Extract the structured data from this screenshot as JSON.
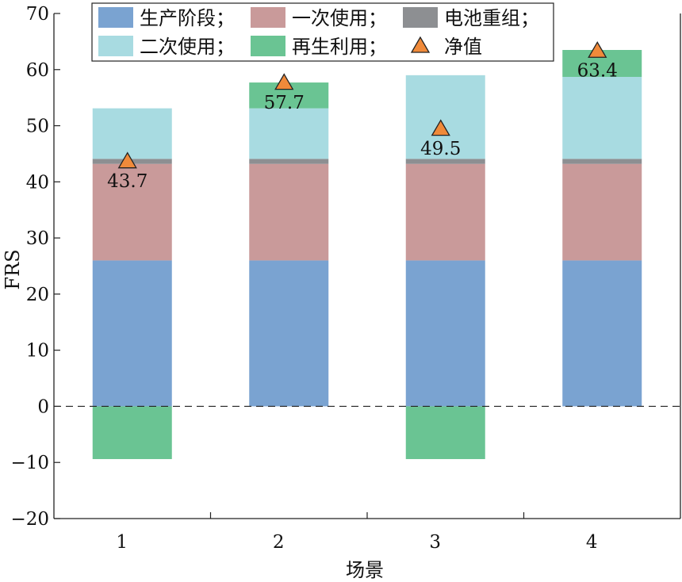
{
  "chart_data": {
    "type": "bar",
    "stacked": true,
    "xlabel": "场景",
    "ylabel": "FRS",
    "ylim": [
      -20,
      70
    ],
    "yticks": [
      -20,
      -10,
      0,
      10,
      20,
      30,
      40,
      50,
      60,
      70
    ],
    "ytick_labels": [
      "−20",
      "−10",
      "0",
      "10",
      "20",
      "30",
      "40",
      "50",
      "60",
      "70"
    ],
    "categories": [
      "1",
      "2",
      "3",
      "4"
    ],
    "zero_line": "dashed",
    "grid": false,
    "legend_position": "top-left",
    "series": [
      {
        "name": "生产阶段；",
        "color": "#7aa3d1",
        "values": [
          26.0,
          26.0,
          26.0,
          26.0
        ]
      },
      {
        "name": "一次使用；",
        "color": "#c99a9a",
        "values": [
          17.2,
          17.2,
          17.2,
          17.2
        ]
      },
      {
        "name": "电池重组；",
        "color": "#8d8f92",
        "values": [
          0.9,
          0.9,
          0.9,
          0.9
        ]
      },
      {
        "name": "二次使用；",
        "color": "#a8dbe1",
        "values": [
          9.0,
          9.0,
          14.9,
          14.6
        ]
      },
      {
        "name": "再生利用；",
        "color": "#6ac493",
        "values": [
          -9.4,
          4.6,
          -9.4,
          4.8
        ]
      }
    ],
    "net": {
      "name": "净值",
      "marker": "triangle",
      "color": "#f08a3a",
      "values": [
        43.7,
        57.7,
        49.5,
        63.4
      ],
      "labels": [
        "43.7",
        "57.7",
        "49.5",
        "63.4"
      ]
    }
  }
}
